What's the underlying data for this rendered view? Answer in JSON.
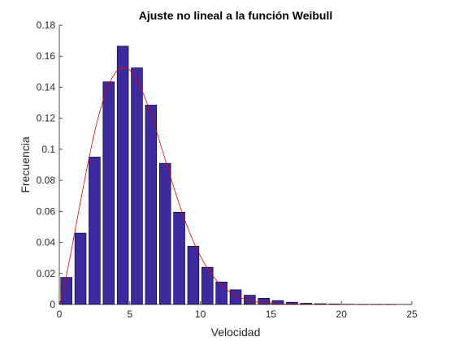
{
  "chart_data": {
    "type": "bar",
    "title": "Ajuste no lineal a la función Weibull",
    "xlabel": "Velocidad",
    "ylabel": "Frecuencia",
    "xlim": [
      0,
      25
    ],
    "ylim": [
      0,
      0.18
    ],
    "xticks": [
      0,
      5,
      10,
      15,
      20,
      25
    ],
    "yticks": [
      0,
      0.02,
      0.04,
      0.06,
      0.08,
      0.1,
      0.12,
      0.14,
      0.16,
      0.18
    ],
    "grid": false,
    "legend": "none",
    "bar_width": 0.8,
    "series": [
      {
        "type": "bar",
        "color": "#3d2a9e",
        "x": [
          0.5,
          1.5,
          2.5,
          3.5,
          4.5,
          5.5,
          6.5,
          7.5,
          8.5,
          9.5,
          10.5,
          11.5,
          12.5,
          13.5,
          14.5,
          15.5,
          16.5,
          17.5,
          18.5,
          19.5,
          20.5,
          21.5,
          22.5,
          23.5
        ],
        "values": [
          0.0175,
          0.046,
          0.095,
          0.1435,
          0.1665,
          0.1525,
          0.1285,
          0.091,
          0.0595,
          0.0375,
          0.024,
          0.0145,
          0.0095,
          0.006,
          0.004,
          0.0025,
          0.0015,
          0.0008,
          0.0005,
          0.0003,
          0.0002,
          0.0001,
          0.0001,
          0.0001
        ]
      },
      {
        "type": "line",
        "color": "#e00000",
        "weibull_fit": {
          "k": 2.2,
          "lambda": 6.0
        }
      }
    ]
  }
}
